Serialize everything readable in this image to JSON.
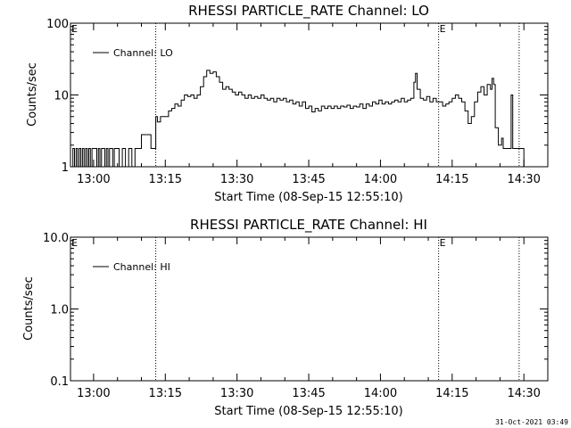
{
  "chart_data": [
    {
      "type": "line",
      "title": "RHESSI PARTICLE_RATE Channel: LO",
      "xlabel": "Start Time (08-Sep-15 12:55:10)",
      "ylabel": "Counts/sec",
      "yscale": "log",
      "ylim": [
        1,
        100
      ],
      "xlim": [
        "12:55:10",
        "14:35:00"
      ],
      "x_ticks": [
        "13:00",
        "13:15",
        "13:30",
        "13:45",
        "14:00",
        "14:15",
        "14:30"
      ],
      "y_ticks": [
        "1",
        "10",
        "100"
      ],
      "legend": {
        "label": "Channel: LO",
        "placement": "top-left"
      },
      "markers": [
        {
          "label": "E",
          "time": "12:55:10"
        },
        {
          "label": "",
          "time": "13:13:00"
        },
        {
          "label": "E",
          "time": "14:12:10"
        },
        {
          "label": "",
          "time": "14:29:00"
        }
      ],
      "series": [
        {
          "name": "Channel: LO",
          "points": [
            [
              "12:55:20",
              1
            ],
            [
              "12:55:40",
              1.8
            ],
            [
              "12:56:00",
              1
            ],
            [
              "12:56:20",
              1.8
            ],
            [
              "12:56:40",
              1
            ],
            [
              "12:57:00",
              1.8
            ],
            [
              "12:57:20",
              1
            ],
            [
              "12:57:40",
              1.8
            ],
            [
              "12:58:00",
              1
            ],
            [
              "12:58:20",
              1.8
            ],
            [
              "12:58:40",
              1
            ],
            [
              "12:59:00",
              1.8
            ],
            [
              "12:59:20",
              1
            ],
            [
              "12:59:40",
              1.8
            ],
            [
              "13:00:20",
              1.8
            ],
            [
              "13:00:40",
              1
            ],
            [
              "13:01:00",
              1.8
            ],
            [
              "13:01:20",
              1
            ],
            [
              "13:01:40",
              1.8
            ],
            [
              "13:02:00",
              1.8
            ],
            [
              "13:02:20",
              1
            ],
            [
              "13:02:40",
              1.8
            ],
            [
              "13:03:00",
              1
            ],
            [
              "13:03:20",
              1.8
            ],
            [
              "13:04:00",
              1
            ],
            [
              "13:04:20",
              1.8
            ],
            [
              "13:05:00",
              1.8
            ],
            [
              "13:05:20",
              1
            ],
            [
              "13:06:00",
              1.8
            ],
            [
              "13:06:40",
              1
            ],
            [
              "13:07:20",
              1.8
            ],
            [
              "13:08:00",
              1
            ],
            [
              "13:08:40",
              1.8
            ],
            [
              "13:09:20",
              1.8
            ],
            [
              "13:10:00",
              2.8
            ],
            [
              "13:11:40",
              2.8
            ],
            [
              "13:12:00",
              1.8
            ],
            [
              "13:12:40",
              1.8
            ],
            [
              "13:13:00",
              5
            ],
            [
              "13:13:20",
              4.2
            ],
            [
              "13:14:00",
              5
            ],
            [
              "13:15:00",
              5
            ],
            [
              "13:15:40",
              6
            ],
            [
              "13:16:20",
              6.5
            ],
            [
              "13:17:00",
              7.5
            ],
            [
              "13:17:40",
              7
            ],
            [
              "13:18:20",
              8.5
            ],
            [
              "13:19:00",
              10
            ],
            [
              "13:19:40",
              9.5
            ],
            [
              "13:20:20",
              10
            ],
            [
              "13:21:00",
              9
            ],
            [
              "13:21:40",
              10
            ],
            [
              "13:22:20",
              13
            ],
            [
              "13:23:00",
              18
            ],
            [
              "13:23:40",
              22
            ],
            [
              "13:24:20",
              20
            ],
            [
              "13:25:00",
              21
            ],
            [
              "13:25:40",
              18
            ],
            [
              "13:26:20",
              15
            ],
            [
              "13:27:00",
              12
            ],
            [
              "13:27:40",
              13
            ],
            [
              "13:28:20",
              12
            ],
            [
              "13:29:00",
              11
            ],
            [
              "13:29:40",
              10
            ],
            [
              "13:30:20",
              11
            ],
            [
              "13:31:00",
              10
            ],
            [
              "13:31:40",
              9
            ],
            [
              "13:32:20",
              10
            ],
            [
              "13:33:00",
              9
            ],
            [
              "13:33:40",
              9.5
            ],
            [
              "13:34:20",
              9
            ],
            [
              "13:35:00",
              10
            ],
            [
              "13:35:40",
              9
            ],
            [
              "13:36:20",
              8.5
            ],
            [
              "13:37:00",
              9
            ],
            [
              "13:37:40",
              8
            ],
            [
              "13:38:20",
              9
            ],
            [
              "13:39:00",
              8.5
            ],
            [
              "13:39:40",
              9
            ],
            [
              "13:40:20",
              8
            ],
            [
              "13:41:00",
              8.5
            ],
            [
              "13:41:40",
              7.5
            ],
            [
              "13:42:20",
              8
            ],
            [
              "13:43:00",
              7
            ],
            [
              "13:43:40",
              8
            ],
            [
              "13:44:20",
              6.5
            ],
            [
              "13:45:00",
              7
            ],
            [
              "13:45:40",
              5.8
            ],
            [
              "13:46:20",
              6.5
            ],
            [
              "13:47:00",
              6
            ],
            [
              "13:47:40",
              7
            ],
            [
              "13:48:20",
              6.5
            ],
            [
              "13:49:00",
              7
            ],
            [
              "13:49:40",
              6.5
            ],
            [
              "13:50:20",
              7
            ],
            [
              "13:51:00",
              6.5
            ],
            [
              "13:51:40",
              7
            ],
            [
              "13:52:20",
              6.8
            ],
            [
              "13:53:00",
              7.2
            ],
            [
              "13:53:40",
              6.5
            ],
            [
              "13:54:20",
              7
            ],
            [
              "13:55:00",
              6.8
            ],
            [
              "13:55:40",
              7.5
            ],
            [
              "13:56:20",
              6.5
            ],
            [
              "13:57:00",
              7.5
            ],
            [
              "13:57:40",
              7
            ],
            [
              "13:58:20",
              8
            ],
            [
              "13:59:00",
              7.5
            ],
            [
              "13:59:40",
              8.5
            ],
            [
              "14:00:20",
              7.5
            ],
            [
              "14:01:00",
              8
            ],
            [
              "14:01:40",
              7.5
            ],
            [
              "14:02:20",
              8
            ],
            [
              "14:03:00",
              8.5
            ],
            [
              "14:03:40",
              8
            ],
            [
              "14:04:20",
              9
            ],
            [
              "14:05:00",
              8
            ],
            [
              "14:05:40",
              8.5
            ],
            [
              "14:06:20",
              9
            ],
            [
              "14:07:00",
              15
            ],
            [
              "14:07:20",
              20
            ],
            [
              "14:07:40",
              12
            ],
            [
              "14:08:20",
              9
            ],
            [
              "14:09:00",
              8.5
            ],
            [
              "14:09:40",
              9.5
            ],
            [
              "14:10:20",
              8
            ],
            [
              "14:11:00",
              9
            ],
            [
              "14:11:40",
              8
            ],
            [
              "14:12:20",
              8
            ],
            [
              "14:13:00",
              7
            ],
            [
              "14:13:40",
              7.5
            ],
            [
              "14:14:20",
              8
            ],
            [
              "14:15:00",
              9
            ],
            [
              "14:15:40",
              10
            ],
            [
              "14:16:20",
              9
            ],
            [
              "14:17:00",
              8
            ],
            [
              "14:17:40",
              6
            ],
            [
              "14:18:20",
              4
            ],
            [
              "14:19:00",
              5
            ],
            [
              "14:19:40",
              8
            ],
            [
              "14:20:20",
              11
            ],
            [
              "14:21:00",
              13
            ],
            [
              "14:21:40",
              10
            ],
            [
              "14:22:20",
              14
            ],
            [
              "14:23:00",
              12
            ],
            [
              "14:23:20",
              17
            ],
            [
              "14:23:40",
              14
            ],
            [
              "14:24:00",
              3.5
            ],
            [
              "14:24:40",
              2
            ],
            [
              "14:25:20",
              2.5
            ],
            [
              "14:25:40",
              1.8
            ],
            [
              "14:26:20",
              1.8
            ],
            [
              "14:27:00",
              1.8
            ],
            [
              "14:27:20",
              10
            ],
            [
              "14:27:40",
              1.8
            ],
            [
              "14:28:20",
              1.8
            ],
            [
              "14:29:00",
              1.8
            ],
            [
              "14:29:40",
              1.8
            ],
            [
              "14:30:00",
              1
            ]
          ]
        }
      ]
    },
    {
      "type": "line",
      "title": "RHESSI PARTICLE_RATE Channel: HI",
      "xlabel": "Start Time (08-Sep-15 12:55:10)",
      "ylabel": "Counts/sec",
      "yscale": "log",
      "ylim": [
        0.1,
        10
      ],
      "xlim": [
        "12:55:10",
        "14:35:00"
      ],
      "x_ticks": [
        "13:00",
        "13:15",
        "13:30",
        "13:45",
        "14:00",
        "14:15",
        "14:30"
      ],
      "y_ticks": [
        "0.1",
        "1.0",
        "10.0"
      ],
      "legend": {
        "label": "Channel: HI",
        "placement": "top-left"
      },
      "markers": [
        {
          "label": "E",
          "time": "12:55:10"
        },
        {
          "label": "",
          "time": "13:13:00"
        },
        {
          "label": "E",
          "time": "14:12:10"
        },
        {
          "label": "",
          "time": "14:29:00"
        }
      ],
      "series": [
        {
          "name": "Channel: HI",
          "points": []
        }
      ]
    }
  ],
  "footer": {
    "timestamp": "31-Oct-2021 03:49"
  }
}
